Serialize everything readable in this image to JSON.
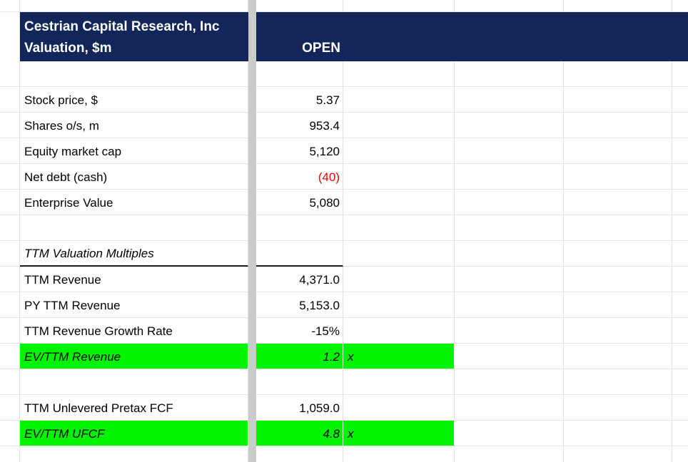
{
  "colors": {
    "navy": "#12265a",
    "green": "#00f400",
    "red": "#fb0000",
    "gridline": "#e3e3e3",
    "divider": "#cbcbcb",
    "section_border": "#1a1a1a",
    "header_text": "#ffffff",
    "text": "#000000"
  },
  "header": {
    "title_line1": "Cestrian Capital Research, Inc",
    "title_line2": "Valuation, $m",
    "column_label": "OPEN"
  },
  "rows": [
    {
      "label": "",
      "value": "",
      "suffix": ""
    },
    {
      "label": "Stock price, $",
      "value": "5.37",
      "suffix": ""
    },
    {
      "label": "Shares o/s, m",
      "value": "953.4",
      "suffix": ""
    },
    {
      "label": "Equity market cap",
      "value": "5,120",
      "suffix": ""
    },
    {
      "label": "Net debt (cash)",
      "value": "(40)",
      "suffix": ""
    },
    {
      "label": "Enterprise Value",
      "value": "5,080",
      "suffix": ""
    },
    {
      "label": "",
      "value": "",
      "suffix": ""
    },
    {
      "label": "TTM Valuation Multiples",
      "value": "",
      "suffix": ""
    },
    {
      "label": "TTM Revenue",
      "value": "4,371.0",
      "suffix": ""
    },
    {
      "label": "PY TTM Revenue",
      "value": "5,153.0",
      "suffix": ""
    },
    {
      "label": "TTM Revenue Growth Rate",
      "value": "-15%",
      "suffix": ""
    },
    {
      "label": "EV/TTM Revenue",
      "value": "1.2",
      "suffix": "x"
    },
    {
      "label": "",
      "value": "",
      "suffix": ""
    },
    {
      "label": "TTM Unlevered Pretax FCF",
      "value": "1,059.0",
      "suffix": ""
    },
    {
      "label": "EV/TTM UFCF",
      "value": "4.8",
      "suffix": "x"
    },
    {
      "label": "",
      "value": "",
      "suffix": ""
    }
  ]
}
